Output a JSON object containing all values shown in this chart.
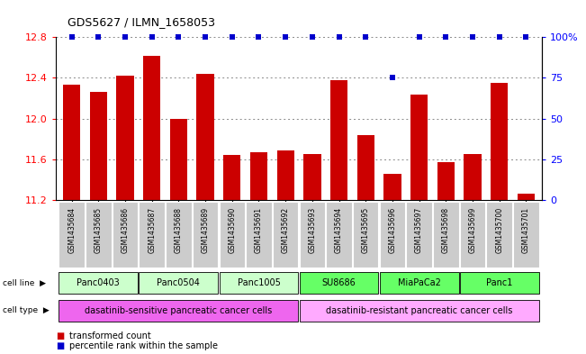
{
  "title": "GDS5627 / ILMN_1658053",
  "samples": [
    "GSM1435684",
    "GSM1435685",
    "GSM1435686",
    "GSM1435687",
    "GSM1435688",
    "GSM1435689",
    "GSM1435690",
    "GSM1435691",
    "GSM1435692",
    "GSM1435693",
    "GSM1435694",
    "GSM1435695",
    "GSM1435696",
    "GSM1435697",
    "GSM1435698",
    "GSM1435699",
    "GSM1435700",
    "GSM1435701"
  ],
  "transformed_counts": [
    12.33,
    12.26,
    12.42,
    12.62,
    12.0,
    12.44,
    11.64,
    11.67,
    11.69,
    11.65,
    12.38,
    11.84,
    11.46,
    12.24,
    11.57,
    11.65,
    12.35,
    11.26
  ],
  "percentile_ranks": [
    100,
    100,
    100,
    100,
    100,
    100,
    100,
    100,
    100,
    100,
    100,
    100,
    75,
    100,
    100,
    100,
    100,
    100
  ],
  "ylim": [
    11.2,
    12.8
  ],
  "yticks": [
    11.2,
    11.6,
    12.0,
    12.4,
    12.8
  ],
  "right_yticks": [
    0,
    25,
    50,
    75,
    100
  ],
  "bar_color": "#cc0000",
  "dot_color": "#0000cc",
  "cell_lines": [
    {
      "name": "Panc0403",
      "start": 0,
      "end": 2,
      "color": "#ccffcc"
    },
    {
      "name": "Panc0504",
      "start": 3,
      "end": 5,
      "color": "#ccffcc"
    },
    {
      "name": "Panc1005",
      "start": 6,
      "end": 8,
      "color": "#ccffcc"
    },
    {
      "name": "SU8686",
      "start": 9,
      "end": 11,
      "color": "#66ff66"
    },
    {
      "name": "MiaPaCa2",
      "start": 12,
      "end": 14,
      "color": "#66ff66"
    },
    {
      "name": "Panc1",
      "start": 15,
      "end": 17,
      "color": "#66ff66"
    }
  ],
  "cell_types": [
    {
      "name": "dasatinib-sensitive pancreatic cancer cells",
      "start": 0,
      "end": 8,
      "color": "#ee66ee"
    },
    {
      "name": "dasatinib-resistant pancreatic cancer cells",
      "start": 9,
      "end": 17,
      "color": "#ffaaff"
    }
  ],
  "legend_bar_label": "transformed count",
  "legend_dot_label": "percentile rank within the sample",
  "bg_color": "#ffffff",
  "grid_color": "#888888",
  "sample_bg_color": "#cccccc"
}
